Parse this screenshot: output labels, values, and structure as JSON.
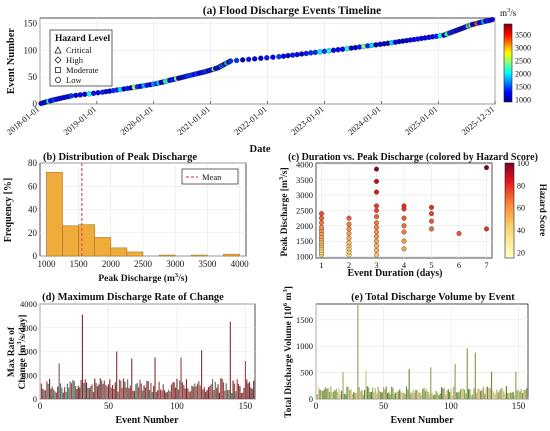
{
  "chart_data": [
    {
      "id": "a",
      "type": "scatter",
      "title": "(a) Flood Discharge Events Timeline",
      "xlabel": "Date",
      "ylabel": "Event Number",
      "x_ticks": [
        "2018-01-01",
        "2019-01-01",
        "2020-01-01",
        "2021-01-01",
        "2022-01-01",
        "2023-01-01",
        "2024-01-01",
        "2025-01-01",
        "2025-12-31"
      ],
      "xlim": [
        "2018-01-01",
        "2025-12-31"
      ],
      "ylim": [
        0,
        160
      ],
      "y_ticks": [
        0,
        50,
        100,
        150
      ],
      "grid": true,
      "legend": {
        "title": "Hazard Level",
        "placement": "top-left",
        "entries": [
          "Critical",
          "High",
          "Moderate",
          "Low"
        ],
        "markers": [
          "triangle",
          "diamond",
          "square",
          "circle"
        ]
      },
      "colorbar": {
        "label": "m³/s",
        "label_main": "m",
        "label_sup": "3",
        "label_tail": "/s",
        "ticks": [
          1000,
          1500,
          2000,
          2500,
          3000,
          3500
        ],
        "range": [
          900,
          3900
        ],
        "colormap": "jet"
      },
      "series": [
        {
          "x_year": [
            2018.02,
            2018.25,
            2018.55,
            2019.1,
            2019.6,
            2020.05,
            2020.9,
            2021.12,
            2021.35,
            2022.2,
            2023.4,
            2024.05,
            2025.1,
            2025.6,
            2025.95
          ],
          "y": [
            1,
            8,
            15,
            22,
            30,
            38,
            60,
            67,
            80,
            88,
            103,
            112,
            128,
            148,
            157
          ]
        }
      ]
    },
    {
      "id": "b",
      "type": "bar",
      "title": "(b) Distribution of Peak Discharge",
      "xlabel_main": "Peak Discharge (m",
      "xlabel_sup": "3",
      "xlabel_tail": "/s)",
      "ylabel": "Frequency [%]",
      "xlim": [
        900,
        4100
      ],
      "ylim": [
        0,
        80
      ],
      "x_ticks": [
        1000,
        1500,
        2000,
        2500,
        3000,
        3500,
        4000
      ],
      "y_ticks": [
        0,
        20,
        40,
        60,
        80
      ],
      "bin_edges": [
        1000,
        1250,
        1500,
        1750,
        2000,
        2250,
        2500,
        2750,
        3000,
        3250,
        3500,
        3750,
        4000
      ],
      "values": [
        72,
        26,
        27,
        16,
        7,
        3.5,
        0,
        0.8,
        0,
        0.8,
        0,
        1.6
      ],
      "mean": 1550,
      "legend": {
        "placement": "top-right",
        "entries": [
          "Mean"
        ]
      },
      "grid": true
    },
    {
      "id": "c",
      "type": "scatter",
      "title": "(c) Duration vs. Peak Discharge (colored by Hazard Score)",
      "xlabel": "Event Duration (days)",
      "ylabel_main": "Peak Discharge [m",
      "ylabel_sup": "3",
      "ylabel_tail": "/s]",
      "xlim": [
        0.8,
        7.2
      ],
      "ylim": [
        950,
        4050
      ],
      "x_ticks": [
        1,
        2,
        3,
        4,
        5,
        6,
        7
      ],
      "y_ticks": [
        1000,
        1500,
        2000,
        2500,
        3000,
        3500,
        4000
      ],
      "colorbar": {
        "label": "Hazard Score",
        "ticks": [
          20,
          40,
          60,
          80,
          100
        ],
        "range": [
          15,
          100
        ],
        "colormap": "ylorrd"
      },
      "points": [
        {
          "x": 1,
          "y": 1050,
          "s": 35
        },
        {
          "x": 1,
          "y": 1120,
          "s": 40
        },
        {
          "x": 1,
          "y": 1200,
          "s": 38
        },
        {
          "x": 1,
          "y": 1280,
          "s": 42
        },
        {
          "x": 1,
          "y": 1350,
          "s": 45
        },
        {
          "x": 1,
          "y": 1420,
          "s": 48
        },
        {
          "x": 1,
          "y": 1500,
          "s": 50
        },
        {
          "x": 1,
          "y": 1580,
          "s": 52
        },
        {
          "x": 1,
          "y": 1650,
          "s": 55
        },
        {
          "x": 1,
          "y": 1750,
          "s": 58
        },
        {
          "x": 1,
          "y": 1850,
          "s": 60
        },
        {
          "x": 1,
          "y": 1950,
          "s": 62
        },
        {
          "x": 1,
          "y": 2100,
          "s": 66
        },
        {
          "x": 1,
          "y": 2250,
          "s": 70
        },
        {
          "x": 1,
          "y": 2400,
          "s": 74
        },
        {
          "x": 2,
          "y": 1050,
          "s": 40
        },
        {
          "x": 2,
          "y": 1150,
          "s": 42
        },
        {
          "x": 2,
          "y": 1250,
          "s": 45
        },
        {
          "x": 2,
          "y": 1350,
          "s": 48
        },
        {
          "x": 2,
          "y": 1450,
          "s": 50
        },
        {
          "x": 2,
          "y": 1600,
          "s": 55
        },
        {
          "x": 2,
          "y": 1750,
          "s": 58
        },
        {
          "x": 2,
          "y": 1900,
          "s": 62
        },
        {
          "x": 2,
          "y": 2050,
          "s": 65
        },
        {
          "x": 2,
          "y": 2250,
          "s": 70
        },
        {
          "x": 3,
          "y": 1050,
          "s": 45
        },
        {
          "x": 3,
          "y": 1200,
          "s": 50
        },
        {
          "x": 3,
          "y": 1350,
          "s": 52
        },
        {
          "x": 3,
          "y": 1500,
          "s": 55
        },
        {
          "x": 3,
          "y": 1650,
          "s": 58
        },
        {
          "x": 3,
          "y": 1800,
          "s": 60
        },
        {
          "x": 3,
          "y": 1950,
          "s": 63
        },
        {
          "x": 3,
          "y": 2100,
          "s": 66
        },
        {
          "x": 3,
          "y": 2300,
          "s": 70
        },
        {
          "x": 3,
          "y": 2500,
          "s": 74
        },
        {
          "x": 3,
          "y": 2650,
          "s": 77
        },
        {
          "x": 3,
          "y": 3100,
          "s": 85
        },
        {
          "x": 3,
          "y": 3450,
          "s": 90
        },
        {
          "x": 3,
          "y": 3850,
          "s": 97
        },
        {
          "x": 4,
          "y": 1250,
          "s": 55
        },
        {
          "x": 4,
          "y": 1500,
          "s": 60
        },
        {
          "x": 4,
          "y": 1800,
          "s": 65
        },
        {
          "x": 4,
          "y": 2000,
          "s": 68
        },
        {
          "x": 4,
          "y": 2250,
          "s": 72
        },
        {
          "x": 4,
          "y": 2550,
          "s": 77
        },
        {
          "x": 4,
          "y": 2650,
          "s": 79
        },
        {
          "x": 5,
          "y": 1900,
          "s": 68
        },
        {
          "x": 5,
          "y": 2150,
          "s": 72
        },
        {
          "x": 5,
          "y": 2400,
          "s": 76
        },
        {
          "x": 5,
          "y": 2600,
          "s": 80
        },
        {
          "x": 6,
          "y": 1750,
          "s": 72
        },
        {
          "x": 7,
          "y": 1900,
          "s": 78
        },
        {
          "x": 7,
          "y": 3900,
          "s": 100
        }
      ]
    },
    {
      "id": "d",
      "type": "bar",
      "title": "(d) Maximum Discharge Rate of Change",
      "xlabel": "Event Number",
      "ylabel_line1": "Max Rate of",
      "ylabel_line2_main": "Change [m",
      "ylabel_sup": "3",
      "ylabel_tail": "/s/day]",
      "xlim": [
        0,
        157
      ],
      "ylim": [
        0,
        4000
      ],
      "x_ticks": [
        0,
        50,
        100,
        150
      ],
      "y_ticks": [
        0,
        1000,
        2000,
        3000,
        4000
      ],
      "peaks": [
        {
          "x": 31,
          "y": 3550
        },
        {
          "x": 139,
          "y": 3250
        },
        {
          "x": 56,
          "y": 2000
        },
        {
          "x": 118,
          "y": 2050
        },
        {
          "x": 84,
          "y": 1750
        },
        {
          "x": 103,
          "y": 1750
        },
        {
          "x": 14,
          "y": 1500
        },
        {
          "x": 67,
          "y": 1700
        },
        {
          "x": 150,
          "y": 1600
        }
      ],
      "base": 700
    },
    {
      "id": "e",
      "type": "bar",
      "title": "(e) Total Discharge Volume by Event",
      "xlabel": "Event Number",
      "ylabel_main": "Total Discharge Volume [10",
      "ylabel_sup": "6",
      "ylabel_tail": " m³]",
      "ylabel_tail_main": " m",
      "ylabel_tail_sup": "3",
      "ylabel_tail_end": "]",
      "xlim": [
        0,
        157
      ],
      "ylim": [
        0,
        1800
      ],
      "x_ticks": [
        0,
        50,
        100,
        150
      ],
      "y_ticks": [
        0,
        500,
        1000,
        1500
      ],
      "peaks": [
        {
          "x": 31,
          "y": 1780
        },
        {
          "x": 112,
          "y": 960
        },
        {
          "x": 118,
          "y": 880
        },
        {
          "x": 103,
          "y": 660
        },
        {
          "x": 85,
          "y": 600
        },
        {
          "x": 69,
          "y": 570
        },
        {
          "x": 37,
          "y": 540
        },
        {
          "x": 130,
          "y": 520
        },
        {
          "x": 148,
          "y": 520
        },
        {
          "x": 20,
          "y": 510
        }
      ],
      "base": 200
    }
  ]
}
